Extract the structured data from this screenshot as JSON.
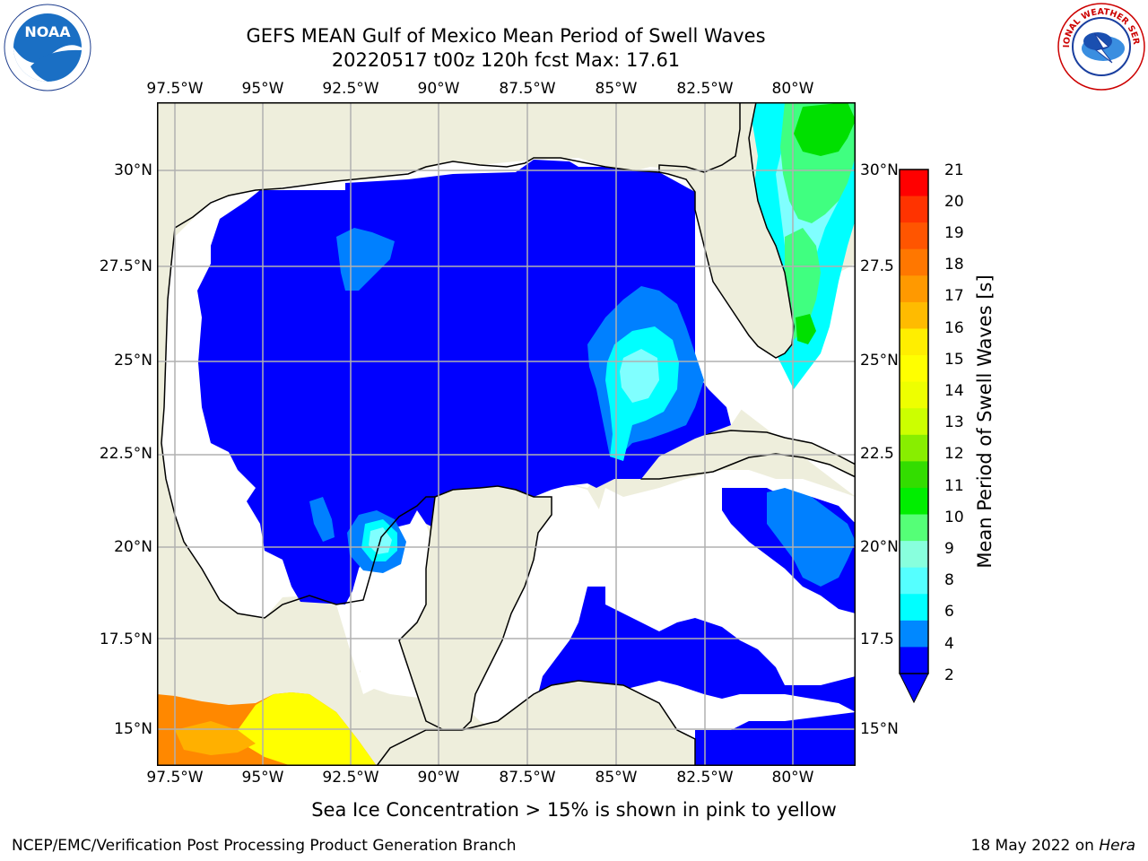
{
  "title": {
    "line1": "GEFS MEAN Gulf of Mexico Mean Period of Swell Waves",
    "line2": "20220517 t00z 120h fcst   Max: 17.61"
  },
  "map": {
    "lon_ticks": [
      "97.5°W",
      "95°W",
      "92.5°W",
      "90°W",
      "87.5°W",
      "85°W",
      "82.5°W",
      "80°W"
    ],
    "lat_ticks_left": [
      "30°N",
      "27.5°N",
      "25°N",
      "22.5°N",
      "20°N",
      "17.5°N",
      "15°N"
    ],
    "lat_ticks_right": [
      "30°N",
      "27.5",
      "25°N",
      "22.5",
      "20°N",
      "17.5",
      "15°N"
    ],
    "colors": {
      "land": "#eeeedc",
      "ocean_nodata": "#ffffff",
      "swell_2_4": "#0000ff",
      "swell_4_6": "#0080ff",
      "swell_6_8": "#00ffff",
      "swell_8_9": "#80ffff",
      "swell_9_10": "#40ff80",
      "swell_10_11": "#00e000",
      "ice_low": "#ff8800",
      "ice_high": "#ffff00",
      "grid": "#b0b0b0",
      "coast": "#000000"
    }
  },
  "colorbar": {
    "label": "Mean Period of Swell Waves [s]",
    "ticks": [
      "21",
      "20",
      "19",
      "18",
      "17",
      "16",
      "15",
      "14",
      "13",
      "12",
      "11",
      "10",
      "9",
      "8",
      "6",
      "4",
      "2"
    ],
    "colors": [
      "#ff0000",
      "#ff3300",
      "#ff5500",
      "#ff7700",
      "#ff9900",
      "#ffbb00",
      "#ffee00",
      "#ffff00",
      "#eeff00",
      "#ccff00",
      "#88ee00",
      "#33dd00",
      "#00ee00",
      "#55ff77",
      "#88ffdd",
      "#55ffff",
      "#00ffff",
      "#0088ff",
      "#0000ff"
    ]
  },
  "caption": "Sea Ice Concentration > 15% is shown in pink to yellow",
  "footer": {
    "left": "NCEP/EMC/Verification Post Processing Product Generation Branch",
    "right_date": "18 May 2022 on ",
    "right_host": "Hera"
  },
  "logos": {
    "noaa_text": "NOAA",
    "nws_text": "NATIONAL WEATHER SERVICE"
  }
}
